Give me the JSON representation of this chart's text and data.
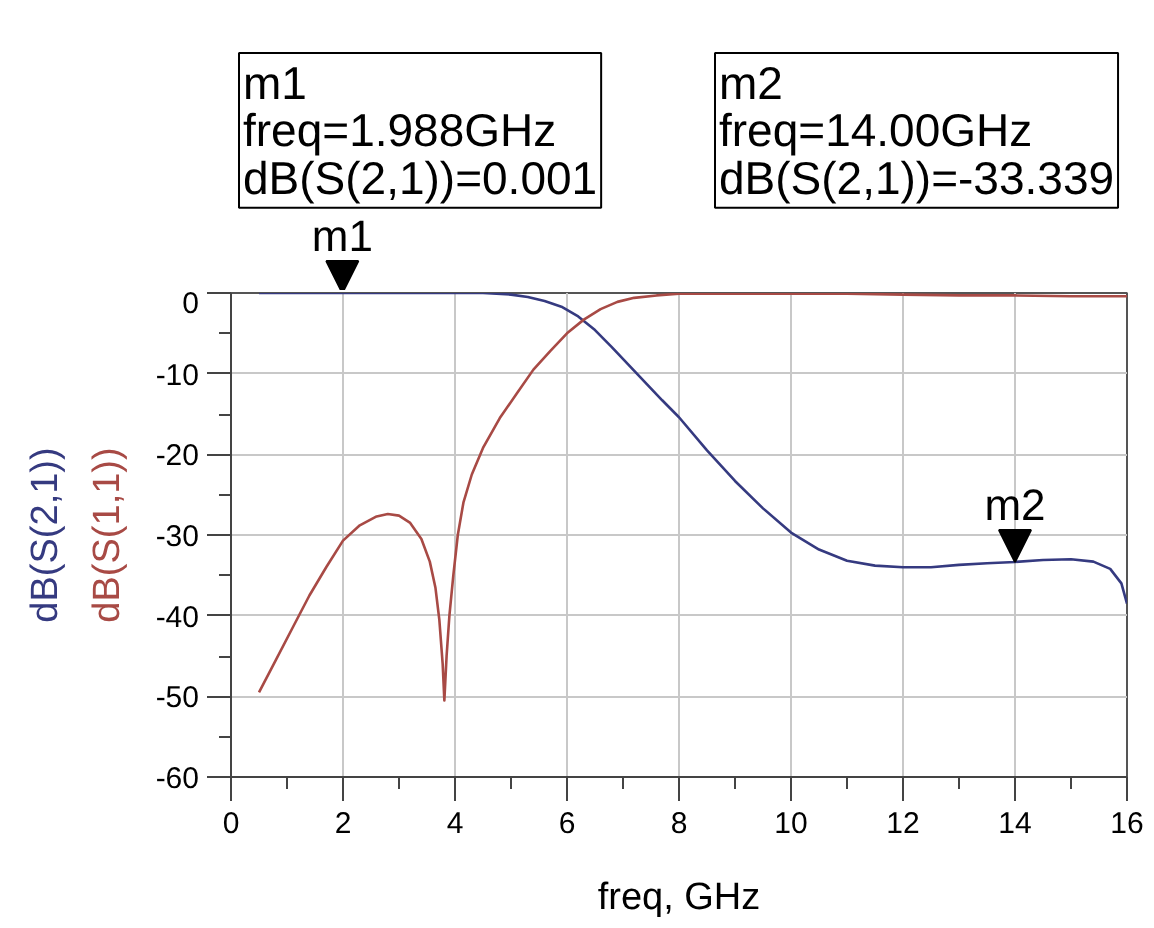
{
  "chart_data": {
    "type": "line",
    "xlabel": "freq, GHz",
    "series": [
      {
        "name": "dB(S(2,1))",
        "color": "#353a80",
        "x": [
          0.5,
          1.0,
          2.0,
          3.0,
          4.0,
          4.5,
          5.0,
          5.3,
          5.6,
          5.9,
          6.2,
          6.5,
          6.8,
          7.1,
          7.4,
          7.7,
          8.0,
          8.5,
          9.0,
          9.5,
          10.0,
          10.5,
          11.0,
          11.5,
          12.0,
          12.5,
          13.0,
          13.5,
          14.0,
          14.5,
          15.0,
          15.4,
          15.7,
          15.9,
          16.0
        ],
        "values": [
          0,
          0,
          0,
          0,
          0,
          0,
          -0.2,
          -0.5,
          -1.0,
          -1.7,
          -2.9,
          -4.6,
          -6.7,
          -8.9,
          -11.1,
          -13.3,
          -15.4,
          -19.5,
          -23.3,
          -26.7,
          -29.7,
          -31.8,
          -33.2,
          -33.8,
          -34.0,
          -34.0,
          -33.7,
          -33.5,
          -33.339,
          -33.1,
          -33.0,
          -33.3,
          -34.2,
          -36.0,
          -38.5
        ]
      },
      {
        "name": "dB(S(1,1))",
        "color": "#a84a45",
        "x": [
          0.5,
          0.8,
          1.1,
          1.4,
          1.7,
          2.0,
          2.3,
          2.6,
          2.8,
          3.0,
          3.2,
          3.4,
          3.55,
          3.65,
          3.72,
          3.78,
          3.81,
          3.85,
          3.9,
          3.97,
          4.05,
          4.15,
          4.3,
          4.5,
          4.8,
          5.1,
          5.4,
          5.7,
          6.0,
          6.3,
          6.6,
          6.9,
          7.2,
          7.6,
          8.0,
          9.0,
          10.0,
          11.0,
          12.0,
          13.0,
          14.0,
          15.0,
          16.0
        ],
        "values": [
          -49.5,
          -45.5,
          -41.5,
          -37.5,
          -34,
          -30.7,
          -28.8,
          -27.7,
          -27.4,
          -27.6,
          -28.5,
          -30.5,
          -33.3,
          -36.5,
          -40.5,
          -46,
          -50.5,
          -45,
          -40,
          -35,
          -30,
          -26,
          -22.5,
          -19.2,
          -15.5,
          -12.5,
          -9.5,
          -7.2,
          -5.0,
          -3.3,
          -2.0,
          -1.1,
          -0.6,
          -0.3,
          -0.1,
          -0.1,
          -0.1,
          -0.1,
          -0.2,
          -0.3,
          -0.3,
          -0.4,
          -0.4
        ]
      }
    ],
    "xlim": [
      0,
      16
    ],
    "ylim": [
      -60,
      0
    ],
    "xticks": [
      0,
      2,
      4,
      6,
      8,
      10,
      12,
      14,
      16
    ],
    "yticks": [
      -60,
      -50,
      -40,
      -30,
      -20,
      -10,
      0
    ],
    "grid": true,
    "annotations": [
      {
        "text": "m1",
        "x": 1.988,
        "y": 0.001
      },
      {
        "text": "m2",
        "x": 14.0,
        "y": -33.339
      },
      "m1\nfreq=1.988GHz\ndB(S(2,1))=0.001",
      "m2\nfreq=14.00GHz\ndB(S(2,1))=-33.339"
    ]
  }
}
